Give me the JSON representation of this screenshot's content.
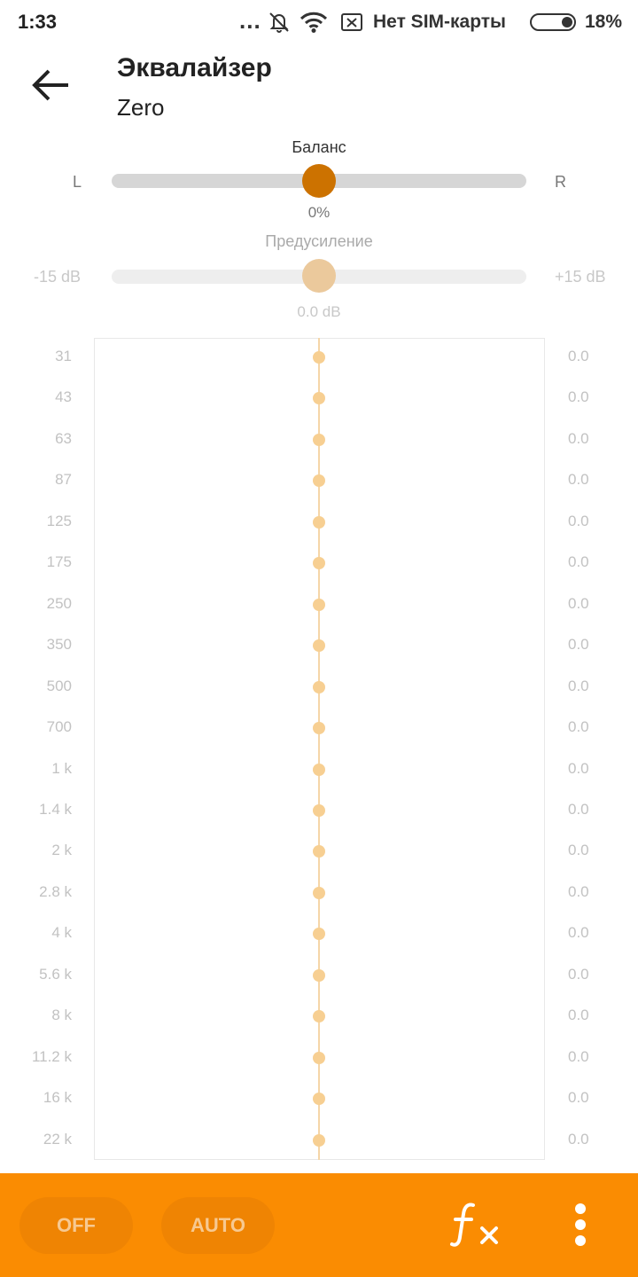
{
  "status_bar": {
    "time": "1:33",
    "dots": "...",
    "carrier": "Нет SIM-карты",
    "battery": "18%"
  },
  "header": {
    "title": "Эквалайзер",
    "subtitle": "Zero"
  },
  "balance": {
    "label": "Баланс",
    "left": "L",
    "right": "R",
    "value": "0%"
  },
  "preamp": {
    "label": "Предусиление",
    "min": "-15 dB",
    "max": "+15 dB",
    "value": "0.0 dB"
  },
  "eq": {
    "bands": [
      {
        "freq": "31",
        "gain": "0.0"
      },
      {
        "freq": "43",
        "gain": "0.0"
      },
      {
        "freq": "63",
        "gain": "0.0"
      },
      {
        "freq": "87",
        "gain": "0.0"
      },
      {
        "freq": "125",
        "gain": "0.0"
      },
      {
        "freq": "175",
        "gain": "0.0"
      },
      {
        "freq": "250",
        "gain": "0.0"
      },
      {
        "freq": "350",
        "gain": "0.0"
      },
      {
        "freq": "500",
        "gain": "0.0"
      },
      {
        "freq": "700",
        "gain": "0.0"
      },
      {
        "freq": "1 k",
        "gain": "0.0"
      },
      {
        "freq": "1.4 k",
        "gain": "0.0"
      },
      {
        "freq": "2 k",
        "gain": "0.0"
      },
      {
        "freq": "2.8 k",
        "gain": "0.0"
      },
      {
        "freq": "4 k",
        "gain": "0.0"
      },
      {
        "freq": "5.6 k",
        "gain": "0.0"
      },
      {
        "freq": "8 k",
        "gain": "0.0"
      },
      {
        "freq": "11.2 k",
        "gain": "0.0"
      },
      {
        "freq": "16 k",
        "gain": "0.0"
      },
      {
        "freq": "22 k",
        "gain": "0.0"
      }
    ]
  },
  "bottom_bar": {
    "off_label": "OFF",
    "auto_label": "AUTO"
  },
  "colors": {
    "accent": "#fa8c02",
    "thumb": "#cc7200",
    "eq_dot": "#f7cf92"
  }
}
